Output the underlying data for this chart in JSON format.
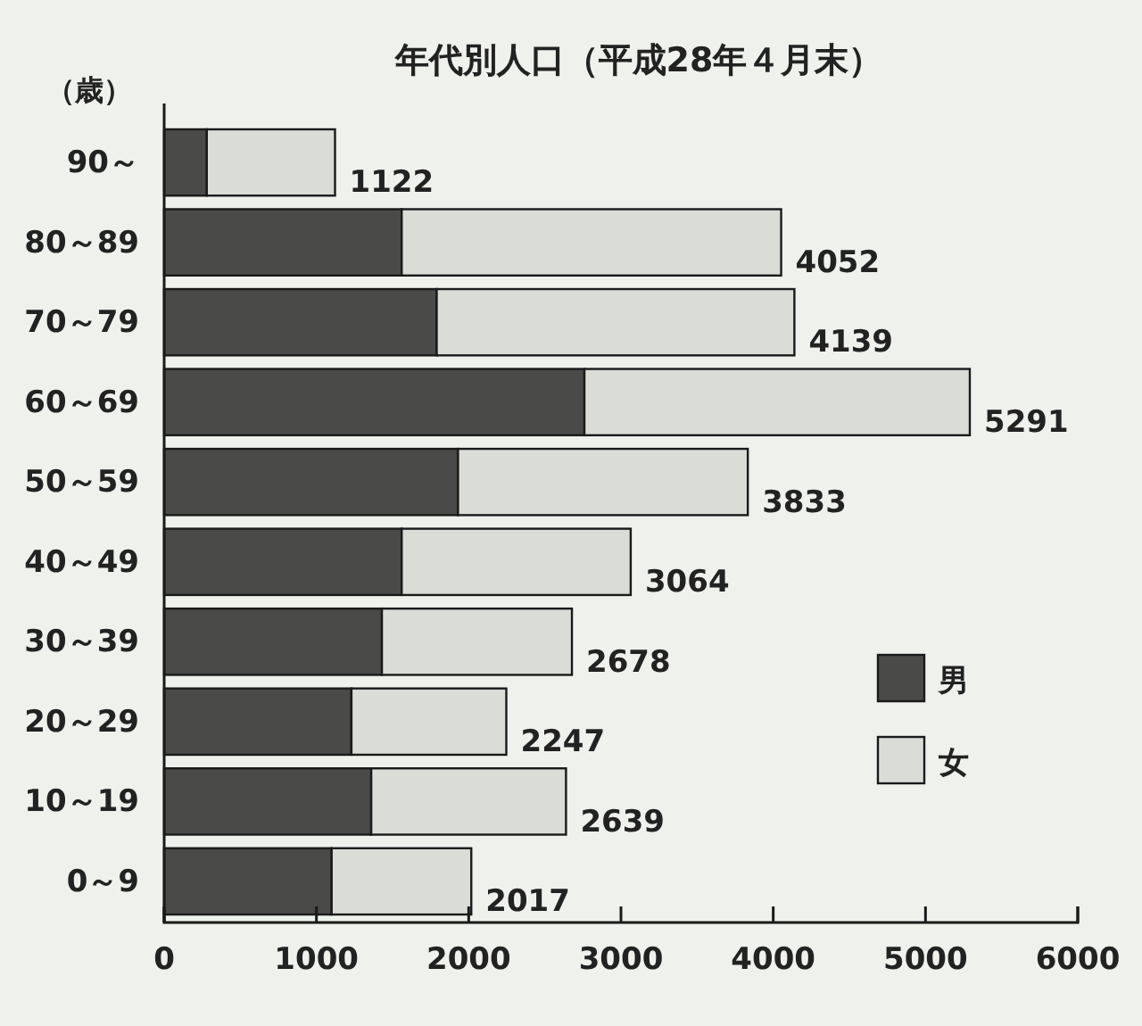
{
  "chart_data": {
    "type": "bar",
    "orientation": "horizontal",
    "stacked": true,
    "title": "年代別人口（平成28年４月末）",
    "ylabel": "（歳）",
    "categories": [
      "90～",
      "80～89",
      "70～79",
      "60～69",
      "50～59",
      "40～49",
      "30～39",
      "20～29",
      "10～19",
      "0～9"
    ],
    "series": [
      {
        "name": "男",
        "color": "#4a4a48",
        "values": [
          280,
          1560,
          1790,
          2760,
          1930,
          1560,
          1430,
          1230,
          1360,
          1100
        ]
      },
      {
        "name": "女",
        "color": "#d9ddd6",
        "values": [
          842,
          2492,
          2349,
          2531,
          1903,
          1504,
          1248,
          1017,
          1279,
          917
        ]
      }
    ],
    "totals": [
      "1122",
      "4052",
      "4139",
      "5291",
      "3833",
      "3064",
      "2678",
      "2247",
      "2639",
      "2017"
    ],
    "xlim": [
      0,
      6000
    ],
    "xticks": [
      0,
      1000,
      2000,
      3000,
      4000,
      5000,
      6000
    ],
    "legend": "bottom right"
  }
}
